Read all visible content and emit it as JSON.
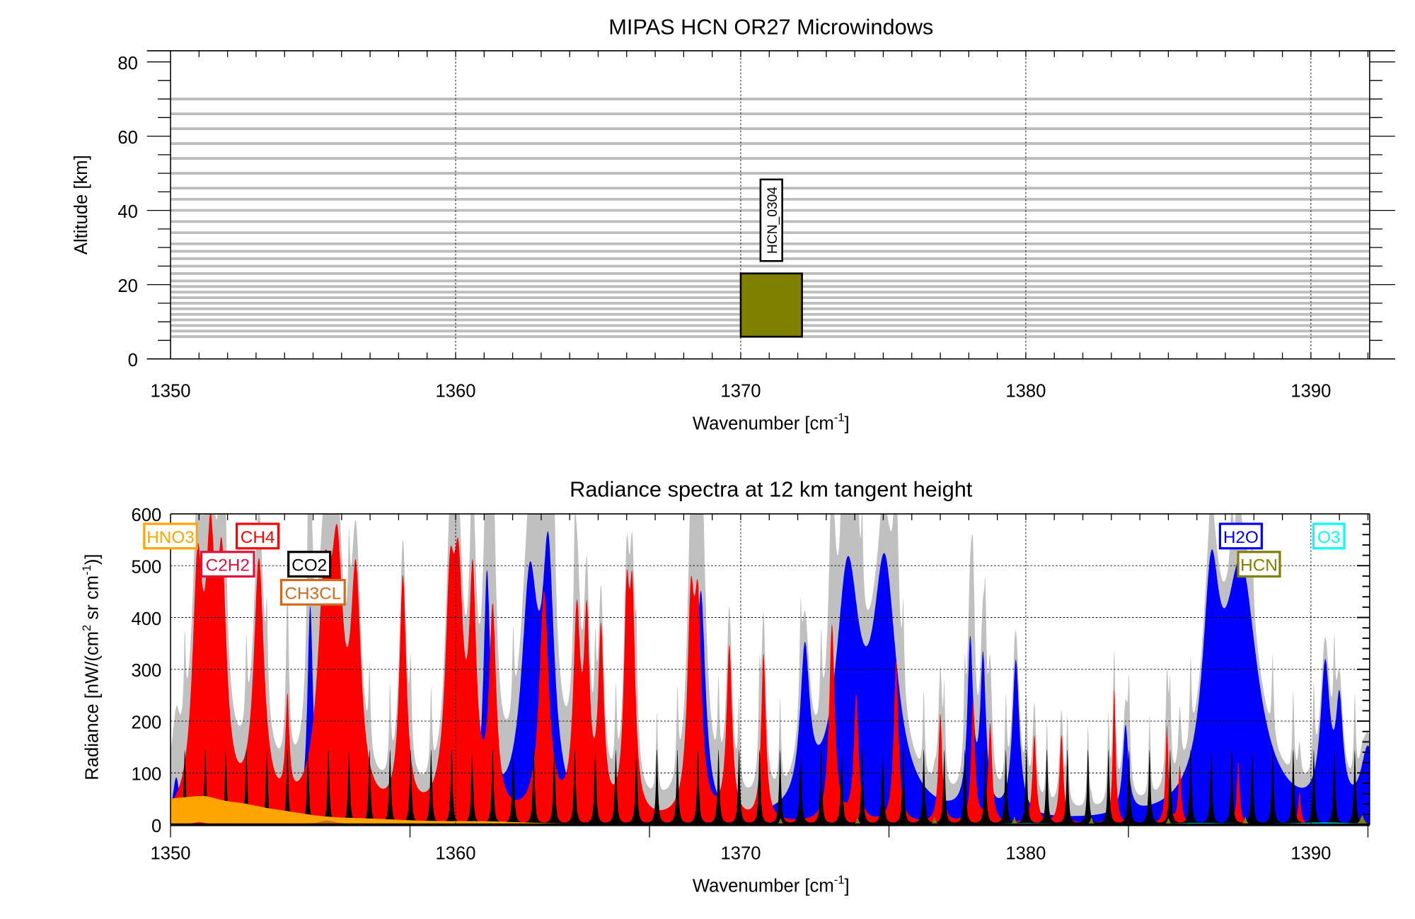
{
  "chart_data": [
    {
      "type": "table",
      "title": "MIPAS HCN OR27 Microwindows",
      "xlabel": "Wavenumber [cm",
      "xlabel_sup": "-1",
      "xlabel_end": "]",
      "ylabel": "Altitude [km]",
      "xlim": [
        1350,
        1392.06
      ],
      "ylim": [
        0,
        83
      ],
      "xticks": [
        "1350",
        "1360",
        "1370",
        "1380",
        "1390"
      ],
      "yticks": [
        "0",
        "20",
        "40",
        "60",
        "80"
      ],
      "tangent_altitudes": [
        6,
        7.5,
        9,
        10.5,
        12,
        13.5,
        15,
        16.5,
        18,
        19.5,
        21,
        23,
        25,
        27,
        29,
        31,
        34,
        37,
        40,
        43,
        46,
        50,
        54,
        58,
        62,
        66,
        70
      ],
      "microwindows": [
        {
          "name": "HCN_0304",
          "wn_start": 1370.0,
          "wn_end": 1372.15,
          "alt_bottom": 6,
          "alt_top": 23,
          "color": "#808000"
        }
      ]
    },
    {
      "type": "area",
      "title": "Radiance spectra at 12 km tangent height",
      "xlabel": "Wavenumber [cm",
      "xlabel_sup": "-1",
      "xlabel_end": "]",
      "ylabel": "Radiance [nW/(cm",
      "ylabel_sup1": "2",
      "ylabel_mid": " sr cm",
      "ylabel_sup2": "-1",
      "ylabel_end": ")]",
      "xlim": [
        1350,
        1392.06
      ],
      "ylim": [
        0,
        600
      ],
      "xticks": [
        "1350",
        "1360",
        "1370",
        "1380",
        "1390"
      ],
      "yticks": [
        "0",
        "100",
        "200",
        "300",
        "400",
        "500",
        "600"
      ],
      "total_color": "#c0c0c0",
      "series": [
        {
          "name": "H2O",
          "color": "#0000ff",
          "width": 0.2,
          "lines": [
            [
              1350.2,
              90,
              0.15
            ],
            [
              1354.9,
              420,
              0.12
            ],
            [
              1361.1,
              460,
              0.15
            ],
            [
              1362.6,
              440,
              0.35
            ],
            [
              1363.25,
              460,
              0.25
            ],
            [
              1368.6,
              440,
              0.2
            ],
            [
              1372.25,
              290,
              0.2
            ],
            [
              1373.75,
              450,
              0.5
            ],
            [
              1375.05,
              460,
              0.5
            ],
            [
              1378.05,
              320,
              0.12
            ],
            [
              1378.5,
              290,
              0.12
            ],
            [
              1379.65,
              300,
              0.15
            ],
            [
              1383.5,
              170,
              0.12
            ],
            [
              1386.5,
              380,
              0.35
            ],
            [
              1387.55,
              470,
              0.7
            ],
            [
              1390.5,
              270,
              0.2
            ],
            [
              1391.0,
              190,
              0.15
            ],
            [
              1392.0,
              130,
              0.3
            ]
          ]
        },
        {
          "name": "CH4",
          "color": "#ff0000",
          "lines": [
            [
              1350.95,
              440,
              0.22
            ],
            [
              1351.4,
              420,
              0.2
            ],
            [
              1351.8,
              420,
              0.2
            ],
            [
              1353.1,
              480,
              0.22
            ],
            [
              1354.1,
              190,
              0.08
            ],
            [
              1355.4,
              400,
              0.3
            ],
            [
              1355.85,
              400,
              0.25
            ],
            [
              1356.5,
              420,
              0.22
            ],
            [
              1358.15,
              450,
              0.15
            ],
            [
              1359.8,
              380,
              0.2
            ],
            [
              1360.1,
              380,
              0.2
            ],
            [
              1360.6,
              410,
              0.15
            ],
            [
              1361.3,
              380,
              0.15
            ],
            [
              1363.1,
              430,
              0.2
            ],
            [
              1364.25,
              370,
              0.15
            ],
            [
              1364.6,
              340,
              0.12
            ],
            [
              1365.1,
              340,
              0.12
            ],
            [
              1366.0,
              370,
              0.12
            ],
            [
              1366.2,
              370,
              0.12
            ],
            [
              1368.25,
              370,
              0.15
            ],
            [
              1368.5,
              360,
              0.15
            ],
            [
              1369.6,
              330,
              0.12
            ],
            [
              1370.8,
              320,
              0.1
            ],
            [
              1373.2,
              380,
              0.12
            ],
            [
              1374.05,
              240,
              0.1
            ],
            [
              1375.45,
              310,
              0.1
            ],
            [
              1377.0,
              210,
              0.08
            ],
            [
              1378.15,
              240,
              0.08
            ],
            [
              1378.75,
              190,
              0.08
            ],
            [
              1380.3,
              170,
              0.08
            ],
            [
              1381.25,
              170,
              0.08
            ],
            [
              1383.1,
              260,
              0.06
            ],
            [
              1384.95,
              190,
              0.06
            ],
            [
              1385.4,
              110,
              0.06
            ],
            [
              1387.45,
              120,
              0.06
            ],
            [
              1389.6,
              60,
              0.06
            ]
          ]
        },
        {
          "name": "CO2",
          "color": "#000000",
          "comb": {
            "start": 1350.5,
            "spacing": 0.72,
            "count": 58,
            "peak": 145,
            "width": 0.04
          }
        },
        {
          "name": "HNO3",
          "color": "#ffa500",
          "lines": [
            [
              1350.0,
              35,
              1.2
            ],
            [
              1351.2,
              25,
              0.9
            ],
            [
              1352.5,
              20,
              1.2
            ],
            [
              1354.0,
              12,
              1.5
            ],
            [
              1357.0,
              6,
              2.0
            ],
            [
              1361.0,
              4,
              2.0
            ]
          ]
        },
        {
          "name": "CH3CL",
          "color": "#d2691e",
          "lines": [
            [
              1355.5,
              8,
              0.4
            ]
          ]
        },
        {
          "name": "C2H2",
          "color": "#dc143c",
          "lines": [
            [
              1351.0,
              5,
              0.3
            ]
          ]
        },
        {
          "name": "HCN",
          "color": "#808000",
          "lines": [
            [
              1371.4,
              12,
              0.05
            ],
            [
              1374.1,
              14,
              0.05
            ],
            [
              1376.8,
              15,
              0.05
            ],
            [
              1379.6,
              15,
              0.05
            ],
            [
              1382.3,
              14,
              0.05
            ],
            [
              1385.0,
              13,
              0.05
            ],
            [
              1387.7,
              15,
              0.05
            ],
            [
              1391.8,
              18,
              0.08
            ]
          ]
        },
        {
          "name": "O3",
          "color": "#00ffff",
          "lines": [
            [
              1380.0,
              3,
              1.5
            ],
            [
              1386.0,
              3,
              1.5
            ],
            [
              1390.5,
              4,
              1.5
            ]
          ]
        }
      ],
      "legend": [
        {
          "label": "HNO3",
          "color": "#ffa500"
        },
        {
          "label": "CH4",
          "color": "#ff0000"
        },
        {
          "label": "C2H2",
          "color": "#dc143c"
        },
        {
          "label": "CO2",
          "color": "#000000"
        },
        {
          "label": "CH3CL",
          "color": "#d2691e"
        },
        {
          "label": "H2O",
          "color": "#0000ff"
        },
        {
          "label": "O3",
          "color": "#00ffff"
        },
        {
          "label": "HCN",
          "color": "#808000"
        }
      ]
    }
  ]
}
